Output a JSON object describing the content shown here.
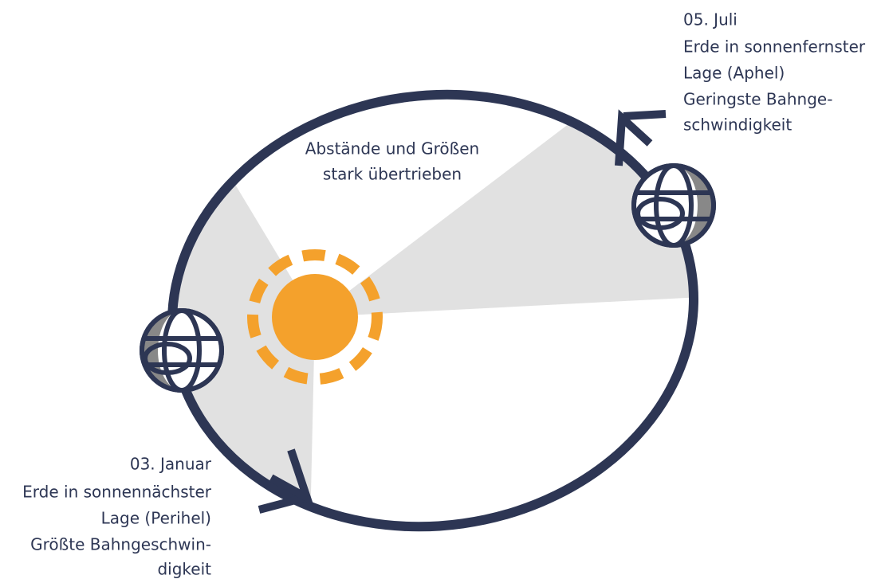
{
  "note": {
    "lines": [
      "Abstände und Größen",
      "stark übertrieben"
    ]
  },
  "aphelion": {
    "lines": [
      "05. Juli",
      "Erde in sonnenfernster",
      "Lage (Aphel)",
      "Geringste Bahnge-",
      "schwindigkeit"
    ]
  },
  "perihelion": {
    "lines": [
      "03. Januar",
      "Erde in sonnennächster",
      "Lage (Perihel)",
      "Größte Bahngeschwin-",
      "digkeit"
    ]
  }
}
